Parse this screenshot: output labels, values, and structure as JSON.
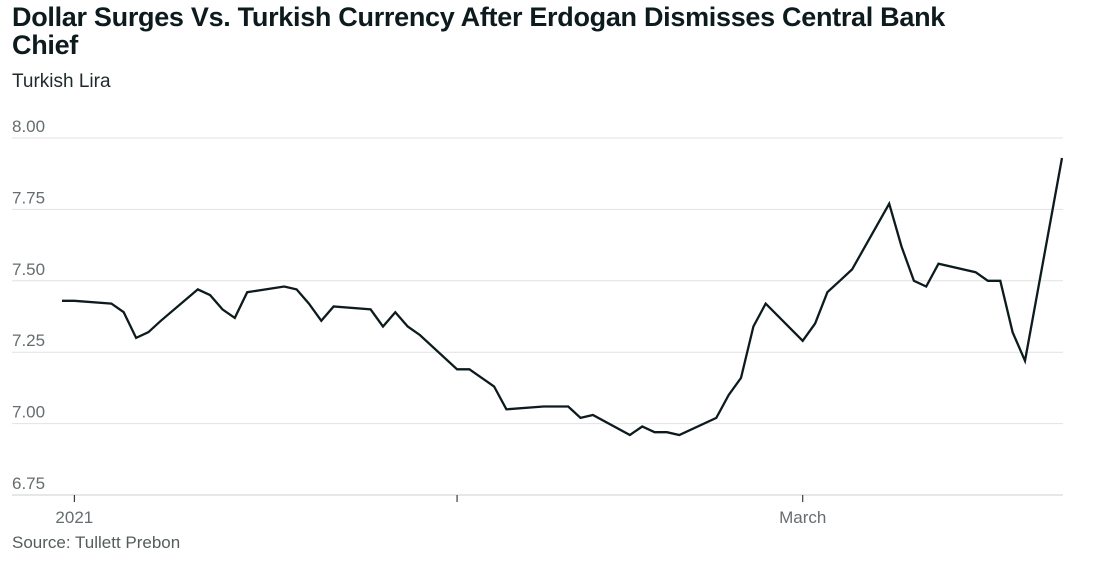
{
  "title": "Dollar Surges Vs. Turkish Currency After Erdogan Dismisses Central Bank Chief",
  "subtitle": "Turkish Lira",
  "source": "Source: Tullett Prebon",
  "colors": {
    "line": "#0d1b1e",
    "grid": "#e2e2e2",
    "axis": "#cfcfcf"
  },
  "chart_data": {
    "type": "line",
    "title": "Dollar Surges Vs. Turkish Currency After Erdogan Dismisses Central Bank Chief",
    "ylabel": "Turkish Lira",
    "xlabel": "",
    "ylim": [
      6.75,
      8.0
    ],
    "y_ticks": [
      "8.00",
      "7.75",
      "7.50",
      "7.25",
      "7.00",
      "6.75"
    ],
    "x_tick_labels": [
      "2021",
      "",
      "March"
    ],
    "grid": true,
    "x": [
      "2020-12-31",
      "2021-01-01",
      "2021-01-04",
      "2021-01-05",
      "2021-01-06",
      "2021-01-07",
      "2021-01-08",
      "2021-01-11",
      "2021-01-12",
      "2021-01-13",
      "2021-01-14",
      "2021-01-15",
      "2021-01-18",
      "2021-01-19",
      "2021-01-20",
      "2021-01-21",
      "2021-01-22",
      "2021-01-25",
      "2021-01-26",
      "2021-01-27",
      "2021-01-28",
      "2021-01-29",
      "2021-02-01",
      "2021-02-02",
      "2021-02-03",
      "2021-02-04",
      "2021-02-05",
      "2021-02-08",
      "2021-02-09",
      "2021-02-10",
      "2021-02-11",
      "2021-02-12",
      "2021-02-15",
      "2021-02-16",
      "2021-02-17",
      "2021-02-18",
      "2021-02-19",
      "2021-02-22",
      "2021-02-23",
      "2021-02-24",
      "2021-02-25",
      "2021-02-26",
      "2021-03-01",
      "2021-03-02",
      "2021-03-03",
      "2021-03-04",
      "2021-03-05",
      "2021-03-08",
      "2021-03-09",
      "2021-03-10",
      "2021-03-11",
      "2021-03-12",
      "2021-03-15",
      "2021-03-16",
      "2021-03-17",
      "2021-03-18",
      "2021-03-19",
      "2021-03-22"
    ],
    "series": [
      {
        "values": [
          7.43,
          7.43,
          7.42,
          7.39,
          7.3,
          7.32,
          7.36,
          7.47,
          7.45,
          7.4,
          7.37,
          7.46,
          7.48,
          7.47,
          7.42,
          7.36,
          7.41,
          7.4,
          7.34,
          7.39,
          7.34,
          7.31,
          7.19,
          7.19,
          7.16,
          7.13,
          7.05,
          7.06,
          7.06,
          7.06,
          7.02,
          7.03,
          6.96,
          6.99,
          6.97,
          6.97,
          6.96,
          7.02,
          7.1,
          7.16,
          7.34,
          7.42,
          7.29,
          7.35,
          7.46,
          7.5,
          7.54,
          7.77,
          7.62,
          7.5,
          7.48,
          7.56,
          7.53,
          7.5,
          7.5,
          7.32,
          7.22,
          7.93
        ]
      }
    ]
  }
}
